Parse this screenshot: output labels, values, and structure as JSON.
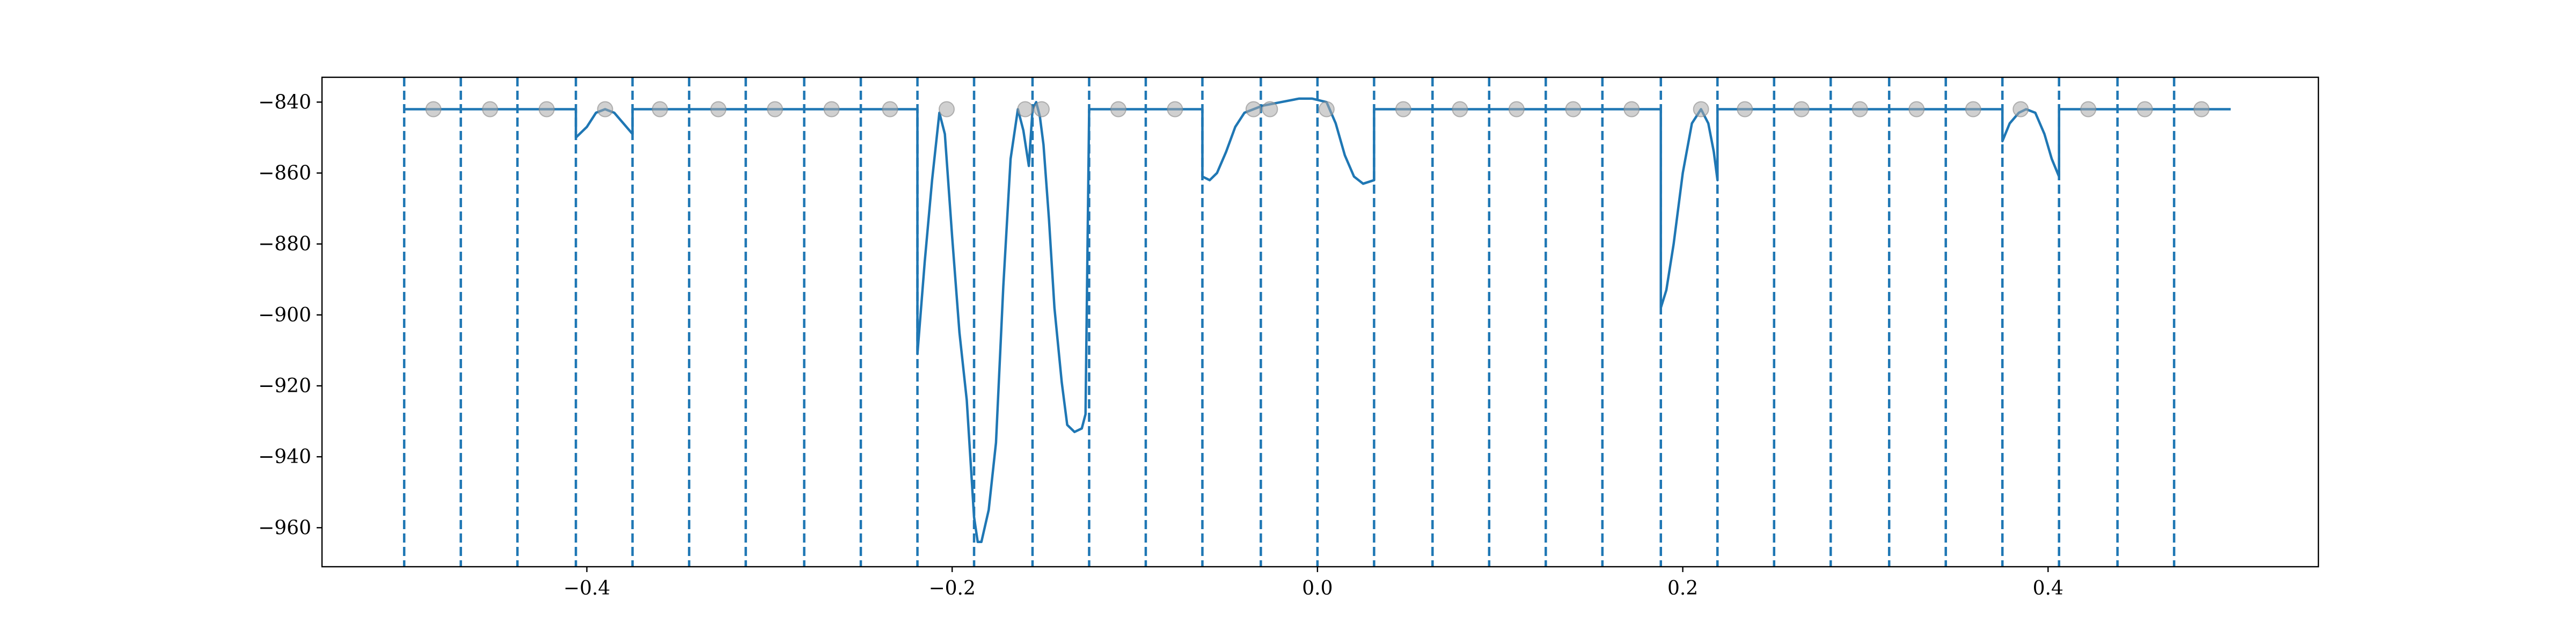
{
  "chart_data": {
    "type": "line",
    "title": "",
    "xlabel": "",
    "ylabel": "",
    "xlim": [
      -0.545,
      0.548
    ],
    "ylim": [
      -971,
      -833
    ],
    "grid": false,
    "legend": "none",
    "x_ticks": [
      {
        "value": -0.4,
        "label": "−0.4"
      },
      {
        "value": -0.2,
        "label": "−0.2"
      },
      {
        "value": 0.0,
        "label": "0.0"
      },
      {
        "value": 0.2,
        "label": "0.2"
      },
      {
        "value": 0.4,
        "label": "0.4"
      }
    ],
    "y_ticks": [
      {
        "value": -840,
        "label": "−840"
      },
      {
        "value": -860,
        "label": "−860"
      },
      {
        "value": -880,
        "label": "−880"
      },
      {
        "value": -900,
        "label": "−900"
      },
      {
        "value": -920,
        "label": "−920"
      },
      {
        "value": -940,
        "label": "−940"
      },
      {
        "value": -960,
        "label": "−960"
      }
    ],
    "colors": {
      "line": "#1f77b4",
      "vlines": "#1f77b4",
      "points": "#aaaaaa"
    },
    "vertical_dashed_lines_x": [
      -0.5,
      -0.469,
      -0.438,
      -0.406,
      -0.375,
      -0.344,
      -0.313,
      -0.281,
      -0.25,
      -0.219,
      -0.188,
      -0.156,
      -0.125,
      -0.094,
      -0.063,
      -0.031,
      0.0,
      0.031,
      0.063,
      0.094,
      0.125,
      0.156,
      0.188,
      0.219,
      0.25,
      0.281,
      0.313,
      0.344,
      0.375,
      0.406,
      0.438,
      0.469
    ],
    "line_series": {
      "x": [
        -0.5,
        -0.406,
        -0.406,
        -0.4,
        -0.395,
        -0.39,
        -0.385,
        -0.38,
        -0.375,
        -0.375,
        -0.219,
        -0.219,
        -0.215,
        -0.211,
        -0.207,
        -0.204,
        -0.2,
        -0.196,
        -0.192,
        -0.188,
        -0.188,
        -0.186,
        -0.184,
        -0.18,
        -0.176,
        -0.172,
        -0.168,
        -0.164,
        -0.161,
        -0.158,
        -0.156,
        -0.156,
        -0.154,
        -0.152,
        -0.15,
        -0.147,
        -0.144,
        -0.14,
        -0.137,
        -0.133,
        -0.129,
        -0.127,
        -0.125,
        -0.125,
        -0.063,
        -0.063,
        -0.059,
        -0.055,
        -0.05,
        -0.045,
        -0.04,
        -0.035,
        -0.03,
        -0.02,
        -0.01,
        -0.003,
        0.005,
        0.01,
        0.015,
        0.02,
        0.025,
        0.031,
        0.031,
        0.188,
        0.188,
        0.191,
        0.195,
        0.2,
        0.205,
        0.21,
        0.214,
        0.217,
        0.219,
        0.219,
        0.375,
        0.375,
        0.379,
        0.384,
        0.388,
        0.393,
        0.398,
        0.402,
        0.406,
        0.406,
        0.5
      ],
      "y": [
        -842,
        -842,
        -850,
        -847,
        -843,
        -842,
        -843,
        -846,
        -849,
        -842,
        -842,
        -911,
        -885,
        -862,
        -843,
        -849,
        -878,
        -905,
        -924,
        -957,
        -957,
        -964,
        -964,
        -955,
        -936,
        -892,
        -856,
        -842,
        -848,
        -858,
        -842,
        -842,
        -840,
        -844,
        -852,
        -873,
        -898,
        -919,
        -931,
        -933,
        -932,
        -928,
        -842,
        -842,
        -842,
        -861,
        -862,
        -860,
        -854,
        -847,
        -843,
        -842,
        -841,
        -840,
        -839,
        -839,
        -840,
        -846,
        -855,
        -861,
        -863,
        -862,
        -842,
        -842,
        -898,
        -893,
        -880,
        -860,
        -846,
        -842,
        -846,
        -854,
        -862,
        -842,
        -842,
        -851,
        -846,
        -843,
        -842,
        -843,
        -849,
        -856,
        -861,
        -842,
        -842
      ]
    },
    "scatter_points_x": [
      -0.484,
      -0.453,
      -0.422,
      -0.39,
      -0.36,
      -0.328,
      -0.297,
      -0.266,
      -0.234,
      -0.203,
      -0.16,
      -0.151,
      -0.109,
      -0.078,
      -0.035,
      -0.026,
      0.005,
      0.047,
      0.078,
      0.109,
      0.14,
      0.172,
      0.21,
      0.234,
      0.265,
      0.297,
      0.328,
      0.359,
      0.385,
      0.422,
      0.453,
      0.484
    ],
    "scatter_points_y": -842
  }
}
